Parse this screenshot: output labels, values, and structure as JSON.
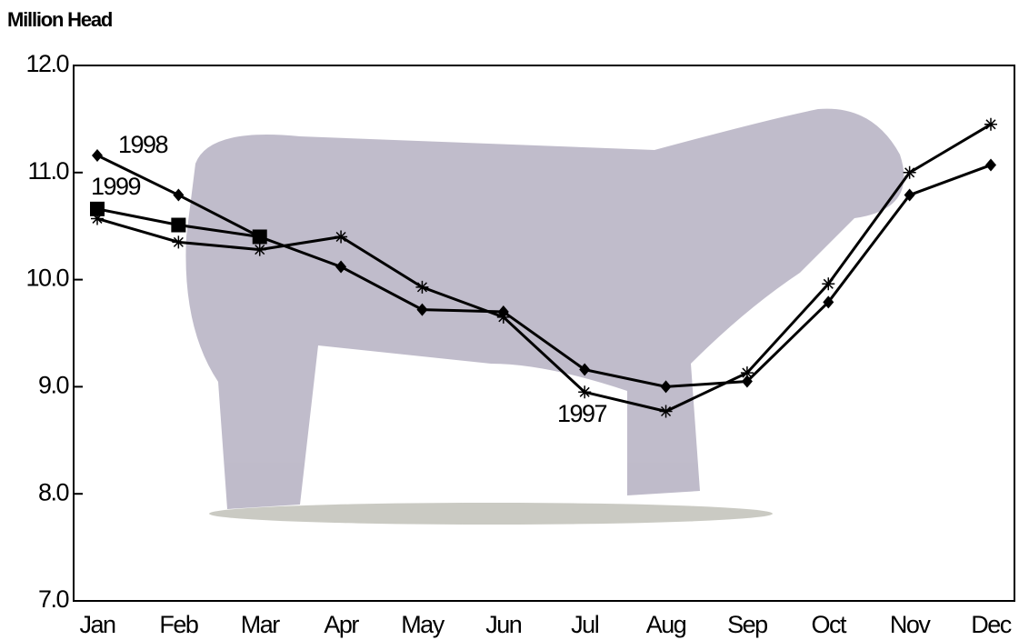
{
  "chart_data": {
    "type": "line",
    "y_label": "Million Head",
    "categories": [
      "Jan",
      "Feb",
      "Mar",
      "Apr",
      "May",
      "Jun",
      "Jul",
      "Aug",
      "Sep",
      "Oct",
      "Nov",
      "Dec"
    ],
    "series": [
      {
        "name": "1997",
        "color": "#000000",
        "marker": "asterisk",
        "values": [
          10.57,
          10.35,
          10.28,
          10.4,
          9.93,
          9.65,
          8.95,
          8.77,
          9.13,
          9.96,
          11.0,
          11.45
        ]
      },
      {
        "name": "1998",
        "color": "#000000",
        "marker": "diamond",
        "values": [
          11.16,
          10.79,
          10.4,
          10.12,
          9.72,
          9.7,
          9.16,
          9.0,
          9.05,
          9.79,
          10.79,
          11.07
        ]
      },
      {
        "name": "1999",
        "color": "#000000",
        "marker": "square",
        "values": [
          10.66,
          10.51,
          10.4,
          null,
          null,
          null,
          null,
          null,
          null,
          null,
          null,
          null
        ]
      }
    ],
    "ylim": [
      7,
      12
    ],
    "yticks": [
      {
        "value": 7,
        "label": "7.0"
      },
      {
        "value": 8,
        "label": "8.0"
      },
      {
        "value": 9,
        "label": "9.0"
      },
      {
        "value": 10,
        "label": "10.0"
      },
      {
        "value": 11,
        "label": "11.0"
      },
      {
        "value": 12,
        "label": "12.0"
      }
    ]
  }
}
